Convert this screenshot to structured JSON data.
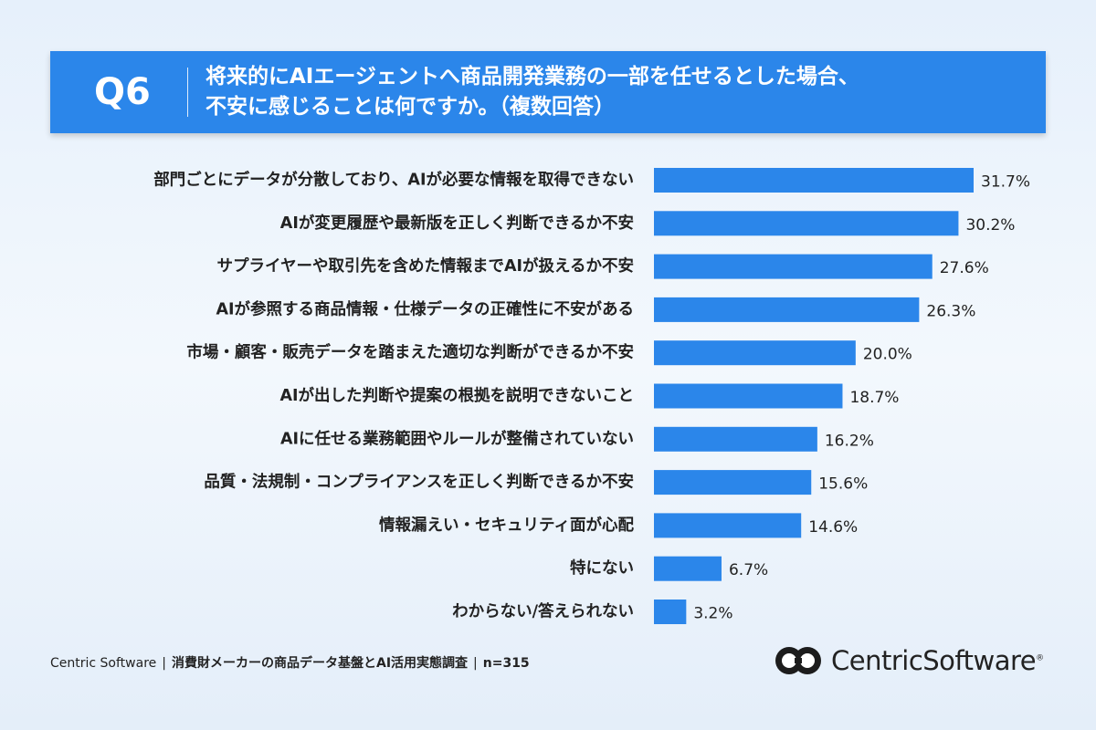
{
  "header": {
    "qnum": "Q6",
    "question_line1": "将来的にAIエージェントへ商品開発業務の一部を任せるとした場合、",
    "question_line2": "不安に感じることは何ですか。（複数回答）"
  },
  "chart_data": {
    "type": "bar",
    "orientation": "horizontal",
    "categories": [
      "部門ごとにデータが分散しており、AIが必要な情報を取得できない",
      "AIが変更履歴や最新版を正しく判断できるか不安",
      "サプライヤーや取引先を含めた情報までAIが扱えるか不安",
      "AIが参照する商品情報・仕様データの正確性に不安がある",
      "市場・顧客・販売データを踏まえた適切な判断ができるか不安",
      "AIが出した判断や提案の根拠を説明できないこと",
      "AIに任せる業務範囲やルールが整備されていない",
      "品質・法規制・コンプライアンスを正しく判断できるか不安",
      "情報漏えい・セキュリティ面が心配",
      "特にない",
      "わからない/答えられない"
    ],
    "values": [
      31.7,
      30.2,
      27.6,
      26.3,
      20.0,
      18.7,
      16.2,
      15.6,
      14.6,
      6.7,
      3.2
    ],
    "value_labels": [
      "31.7%",
      "30.2%",
      "27.6%",
      "26.3%",
      "20.0%",
      "18.7%",
      "16.2%",
      "15.6%",
      "14.6%",
      "6.7%",
      "3.2%"
    ],
    "bar_color": "#2b86ea",
    "xlim": [
      0,
      31.7
    ],
    "grid": false,
    "legend": "none"
  },
  "footer": {
    "source": "Centric Software",
    "survey": "消費財メーカーの商品データ基盤とAI活用実態調査",
    "n": "n=315"
  },
  "logo": {
    "brand": "CentricSoftware",
    "tm": "®"
  },
  "colors": {
    "banner": "#2b86ea",
    "bar": "#2b86ea",
    "background": "#eaf2fb"
  }
}
